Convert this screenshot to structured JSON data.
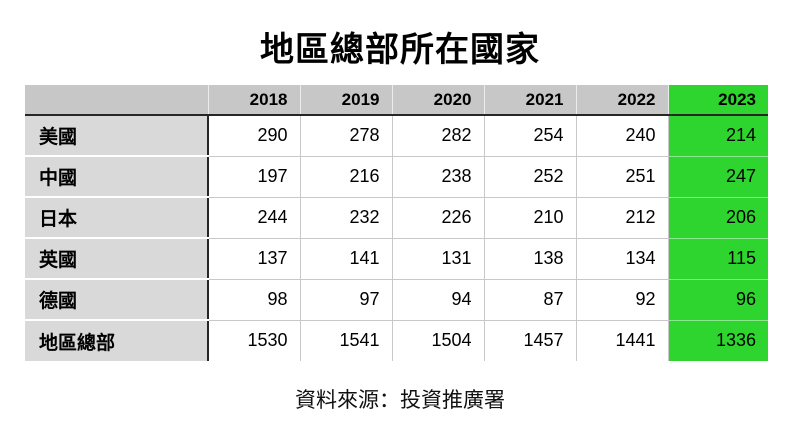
{
  "title": "地區總部所在國家",
  "source_note": "資料來源：投資推廣署",
  "colors": {
    "header_bg": "#c7c7c7",
    "label_bg": "#d9d9d9",
    "highlight_green": "#2ed52e",
    "dark_border": "#262626",
    "light_border": "#c8c8c8"
  },
  "chart_data": {
    "type": "table",
    "title": "地區總部所在國家",
    "columns": [
      "",
      "2018",
      "2019",
      "2020",
      "2021",
      "2022",
      "2023"
    ],
    "highlight_column": "2023",
    "rows": [
      {
        "label": "美國",
        "values": [
          290,
          278,
          282,
          254,
          240,
          214
        ]
      },
      {
        "label": "中國",
        "values": [
          197,
          216,
          238,
          252,
          251,
          247
        ]
      },
      {
        "label": "日本",
        "values": [
          244,
          232,
          226,
          210,
          212,
          206
        ]
      },
      {
        "label": "英國",
        "values": [
          137,
          141,
          131,
          138,
          134,
          115
        ]
      },
      {
        "label": "德國",
        "values": [
          98,
          97,
          94,
          87,
          92,
          96
        ]
      },
      {
        "label": "地區總部",
        "values": [
          1530,
          1541,
          1504,
          1457,
          1441,
          1336
        ]
      }
    ],
    "source": "資料來源：投資推廣署"
  }
}
